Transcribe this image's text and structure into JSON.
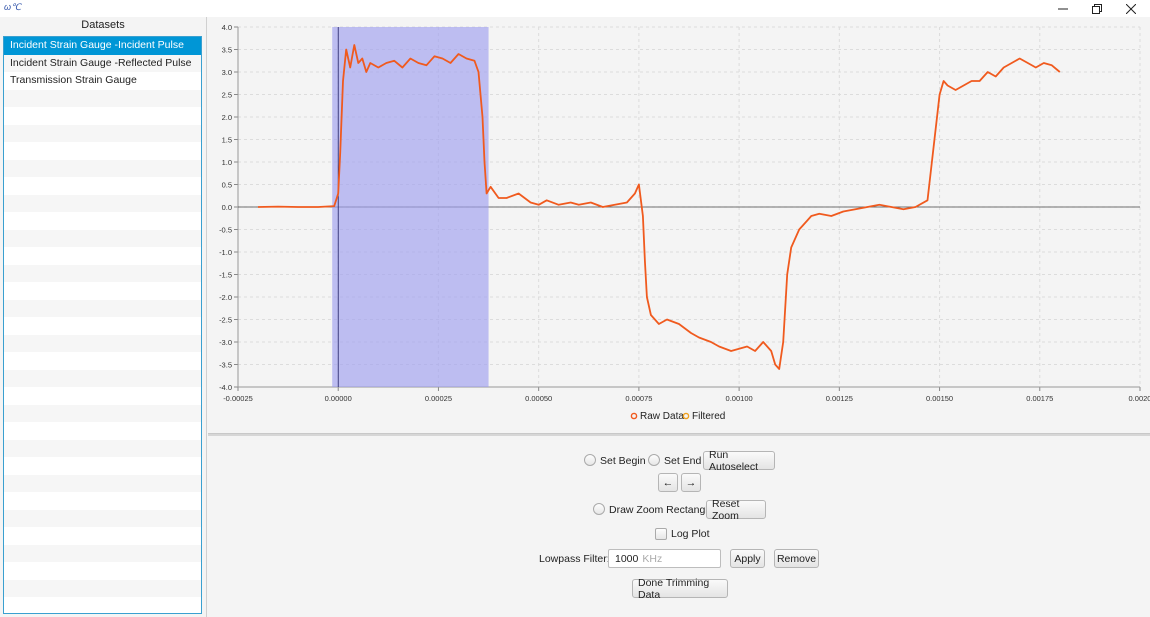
{
  "window": {
    "icon_text": "ω℃"
  },
  "sidebar": {
    "header": "Datasets",
    "items": [
      {
        "label": "Incident Strain Gauge -Incident Pulse",
        "selected": true
      },
      {
        "label": "Incident Strain Gauge -Reflected Pulse",
        "selected": false
      },
      {
        "label": "Transmission Strain Gauge",
        "selected": false
      }
    ]
  },
  "chart_data": {
    "type": "line",
    "xlim": [
      -0.00025,
      0.002
    ],
    "ylim": [
      -4.0,
      4.0
    ],
    "x_ticks": [
      "-0.00025",
      "0.00000",
      "0.00025",
      "0.00050",
      "0.00075",
      "0.00100",
      "0.00125",
      "0.00150",
      "0.00175",
      "0.0020"
    ],
    "y_ticks": [
      "4.0",
      "3.5",
      "3.0",
      "2.5",
      "2.0",
      "1.5",
      "1.0",
      "0.5",
      "0.0",
      "-0.5",
      "-1.0",
      "-1.5",
      "-2.0",
      "-2.5",
      "-3.0",
      "-3.5",
      "-4.0"
    ],
    "grid": true,
    "selection_range": [
      -1.5e-05,
      0.000375
    ],
    "cursor_x": 0.0,
    "series": [
      {
        "name": "Raw Data",
        "color": "#f05a1e",
        "x": [
          -0.0002,
          -0.00015,
          -0.0001,
          -5e-05,
          -1e-05,
          0.0,
          5e-06,
          1.2e-05,
          2e-05,
          3e-05,
          4e-05,
          5e-05,
          6e-05,
          7e-05,
          8e-05,
          0.0001,
          0.00012,
          0.00014,
          0.00016,
          0.00018,
          0.0002,
          0.00022,
          0.00024,
          0.00026,
          0.00028,
          0.0003,
          0.00032,
          0.00034,
          0.00035,
          0.00036,
          0.000365,
          0.00037,
          0.00038,
          0.0004,
          0.00042,
          0.00045,
          0.00048,
          0.0005,
          0.00052,
          0.00055,
          0.00058,
          0.0006,
          0.00063,
          0.00066,
          0.00069,
          0.00072,
          0.00074,
          0.00075,
          0.00076,
          0.000765,
          0.00077,
          0.00078,
          0.0008,
          0.00082,
          0.00085,
          0.00088,
          0.0009,
          0.00093,
          0.00095,
          0.00098,
          0.001,
          0.00102,
          0.00104,
          0.00106,
          0.00107,
          0.00108,
          0.00109,
          0.0011,
          0.00111,
          0.00112,
          0.00113,
          0.00115,
          0.00117,
          0.00118,
          0.0012,
          0.00123,
          0.00126,
          0.00129,
          0.00132,
          0.00135,
          0.00138,
          0.00141,
          0.00144,
          0.00147,
          0.0015,
          0.00151,
          0.00152,
          0.00154,
          0.00156,
          0.00158,
          0.0016,
          0.00162,
          0.00164,
          0.00166,
          0.00168,
          0.0017,
          0.00172,
          0.00174,
          0.00176,
          0.00178,
          0.0018
        ],
        "y": [
          0.0,
          0.01,
          0.0,
          0.0,
          0.02,
          0.3,
          1.2,
          2.8,
          3.5,
          3.1,
          3.6,
          3.2,
          3.3,
          3.0,
          3.2,
          3.1,
          3.2,
          3.25,
          3.1,
          3.3,
          3.2,
          3.15,
          3.35,
          3.3,
          3.2,
          3.4,
          3.3,
          3.25,
          3.0,
          2.0,
          1.0,
          0.3,
          0.45,
          0.2,
          0.2,
          0.3,
          0.1,
          0.05,
          0.15,
          0.05,
          0.1,
          0.05,
          0.1,
          0.0,
          0.05,
          0.1,
          0.3,
          0.5,
          -0.2,
          -1.2,
          -2.0,
          -2.4,
          -2.6,
          -2.5,
          -2.6,
          -2.8,
          -2.9,
          -3.0,
          -3.1,
          -3.2,
          -3.15,
          -3.1,
          -3.2,
          -3.0,
          -3.1,
          -3.2,
          -3.5,
          -3.6,
          -3.0,
          -1.5,
          -0.9,
          -0.5,
          -0.3,
          -0.2,
          -0.15,
          -0.2,
          -0.1,
          -0.05,
          0.0,
          0.05,
          0.0,
          -0.05,
          0.0,
          0.15,
          2.5,
          2.8,
          2.7,
          2.6,
          2.7,
          2.8,
          2.8,
          3.0,
          2.9,
          3.1,
          3.2,
          3.3,
          3.2,
          3.1,
          3.2,
          3.15,
          3.0
        ]
      }
    ],
    "legend": [
      {
        "name": "Raw Data",
        "color": "#f05a1e"
      },
      {
        "name": "Filtered",
        "color": "#f0a01e"
      }
    ]
  },
  "controls": {
    "set_begin": "Set Begin",
    "set_end": "Set End",
    "run_autoselect": "Run Autoselect",
    "arrow_left": "←",
    "arrow_right": "→",
    "draw_zoom": "Draw Zoom Rectangle",
    "reset_zoom": "Reset Zoom",
    "log_plot": "Log Plot",
    "lowpass_label": "Lowpass Filter:",
    "lowpass_value": "1000",
    "lowpass_unit": "KHz",
    "apply": "Apply",
    "remove": "Remove",
    "done": "Done Trimming Data"
  }
}
